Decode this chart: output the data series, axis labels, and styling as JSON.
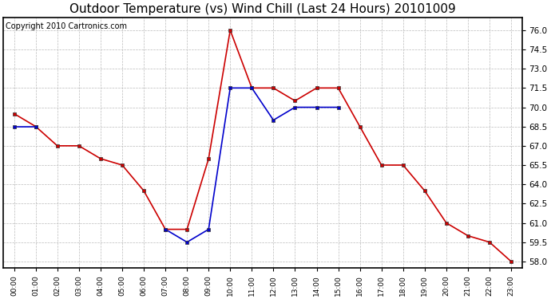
{
  "title": "Outdoor Temperature (vs) Wind Chill (Last 24 Hours) 20101009",
  "copyright": "Copyright 2010 Cartronics.com",
  "hours": [
    "00:00",
    "01:00",
    "02:00",
    "03:00",
    "04:00",
    "05:00",
    "06:00",
    "07:00",
    "08:00",
    "09:00",
    "10:00",
    "11:00",
    "12:00",
    "13:00",
    "14:00",
    "15:00",
    "16:00",
    "17:00",
    "18:00",
    "19:00",
    "20:00",
    "21:00",
    "22:00",
    "23:00"
  ],
  "temp": [
    69.5,
    68.5,
    67.0,
    67.0,
    66.0,
    65.5,
    63.5,
    60.5,
    60.5,
    66.0,
    76.0,
    71.5,
    71.5,
    70.5,
    71.5,
    71.5,
    68.5,
    65.5,
    65.5,
    63.5,
    61.0,
    60.0,
    59.5,
    58.0
  ],
  "windchill": [
    68.5,
    68.5,
    null,
    null,
    null,
    null,
    null,
    60.5,
    59.5,
    60.5,
    71.5,
    71.5,
    69.0,
    70.0,
    70.0,
    70.0,
    null,
    null,
    null,
    null,
    null,
    null,
    null,
    null
  ],
  "ylim": [
    57.5,
    77.0
  ],
  "yticks": [
    58.0,
    59.5,
    61.0,
    62.5,
    64.0,
    65.5,
    67.0,
    68.5,
    70.0,
    71.5,
    73.0,
    74.5,
    76.0
  ],
  "temp_color": "#cc0000",
  "windchill_color": "#0000cc",
  "grid_color": "#bbbbbb",
  "bg_color": "#ffffff",
  "plot_bg_color": "#ffffff",
  "title_fontsize": 11,
  "copyright_fontsize": 7
}
